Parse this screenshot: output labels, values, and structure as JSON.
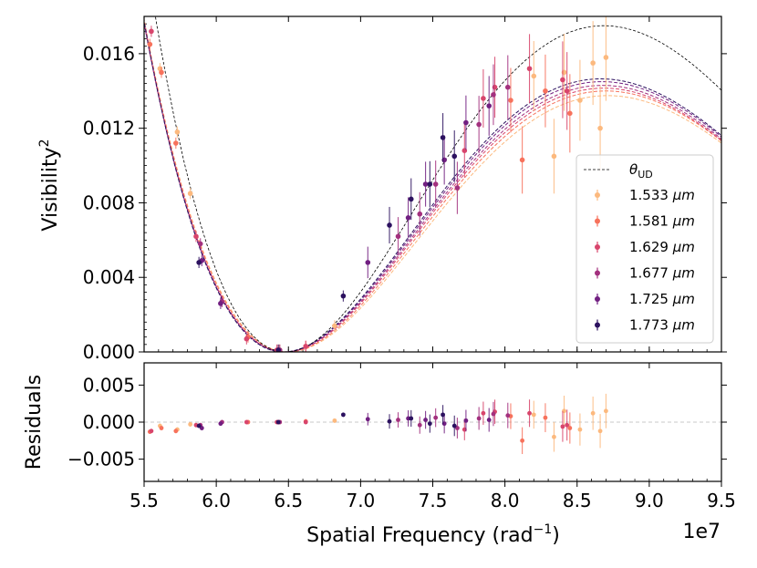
{
  "chart_data": {
    "type": "scatter",
    "x_multiplier_label": "1e7",
    "xlabel": "Spatial Frequency (rad",
    "xlabel_unit_power": "−1",
    "xlabel_suffix": ")",
    "xlim": [
      5.5,
      9.5
    ],
    "xticks": [
      "5.5",
      "6.0",
      "6.5",
      "7.0",
      "7.5",
      "8.0",
      "8.5",
      "9.0",
      "9.5"
    ],
    "top_panel": {
      "ylabel": "Visibility",
      "ylabel_power": "2",
      "ylim": [
        0.0,
        0.018
      ],
      "yticks": [
        "0.000",
        "0.004",
        "0.008",
        "0.012",
        "0.016"
      ],
      "ud_model": {
        "label_symbol": "θ",
        "label_sub": "UD",
        "peak": 0.0175,
        "null_x": 6.48,
        "peak_x": 8.67,
        "color": "#000000"
      }
    },
    "bottom_panel": {
      "ylabel": "Residuals",
      "ylim": [
        -0.008,
        0.008
      ],
      "yticks": [
        "0.005",
        "0.000",
        "−0.005"
      ]
    },
    "legend": {
      "location": "lower-right"
    },
    "series": [
      {
        "name": "1.533",
        "unit": "μm",
        "color": "#fcb97e",
        "model_peak": 0.01375,
        "model_null": 6.5,
        "points": [
          [
            5.61,
            0.0152
          ],
          [
            5.73,
            0.0118
          ],
          [
            5.82,
            0.0085
          ],
          [
            6.44,
            0.0001
          ],
          [
            6.82,
            0.0014
          ],
          [
            8.2,
            0.0148
          ],
          [
            8.34,
            0.0105
          ],
          [
            8.41,
            0.015
          ],
          [
            8.52,
            0.0135
          ],
          [
            8.61,
            0.0155
          ],
          [
            8.66,
            0.012
          ],
          [
            8.7,
            0.0158
          ]
        ],
        "residuals": [
          [
            5.61,
            -0.0005
          ],
          [
            5.73,
            -0.001
          ],
          [
            5.82,
            -0.0003
          ],
          [
            6.44,
            0.0
          ],
          [
            6.82,
            0.0002
          ],
          [
            8.2,
            0.001
          ],
          [
            8.34,
            -0.002
          ],
          [
            8.41,
            0.0015
          ],
          [
            8.52,
            -0.001
          ],
          [
            8.61,
            0.0012
          ],
          [
            8.66,
            -0.0012
          ],
          [
            8.7,
            0.0015
          ]
        ]
      },
      {
        "name": "1.581",
        "unit": "μm",
        "color": "#f7725c",
        "model_peak": 0.014,
        "model_null": 6.49,
        "points": [
          [
            5.54,
            0.0165
          ],
          [
            5.62,
            0.015
          ],
          [
            5.72,
            0.0112
          ],
          [
            6.22,
            0.0008
          ],
          [
            6.43,
            0.0001
          ],
          [
            6.62,
            0.0003
          ],
          [
            8.04,
            0.0135
          ],
          [
            8.12,
            0.0103
          ],
          [
            8.28,
            0.014
          ],
          [
            8.45,
            0.0128
          ]
        ],
        "residuals": [
          [
            5.54,
            -0.0013
          ],
          [
            5.62,
            -0.0008
          ],
          [
            5.72,
            -0.0012
          ],
          [
            6.22,
            0.0
          ],
          [
            6.43,
            0.0
          ],
          [
            6.62,
            0.0001
          ],
          [
            8.04,
            0.0008
          ],
          [
            8.12,
            -0.0025
          ],
          [
            8.28,
            0.0006
          ],
          [
            8.45,
            -0.0008
          ]
        ]
      },
      {
        "name": "1.629",
        "unit": "μm",
        "color": "#d8456c",
        "model_peak": 0.01415,
        "model_null": 6.48,
        "points": [
          [
            5.55,
            0.0172
          ],
          [
            5.86,
            0.0062
          ],
          [
            6.21,
            0.0007
          ],
          [
            6.42,
            0.0001
          ],
          [
            6.62,
            0.0003
          ],
          [
            7.72,
            0.0108
          ],
          [
            7.85,
            0.0136
          ],
          [
            7.93,
            0.0142
          ],
          [
            8.17,
            0.0152
          ],
          [
            8.4,
            0.0146
          ],
          [
            8.43,
            0.014
          ]
        ],
        "residuals": [
          [
            5.55,
            -0.0012
          ],
          [
            5.86,
            -0.0004
          ],
          [
            6.21,
            0.0
          ],
          [
            6.42,
            0.0
          ],
          [
            6.62,
            0.0
          ],
          [
            7.72,
            -0.001
          ],
          [
            7.85,
            0.0012
          ],
          [
            7.93,
            0.0014
          ],
          [
            8.17,
            0.0012
          ],
          [
            8.4,
            -0.0006
          ],
          [
            8.43,
            -0.0004
          ]
        ]
      },
      {
        "name": "1.677",
        "unit": "μm",
        "color": "#a3307e",
        "model_peak": 0.0143,
        "model_null": 6.475,
        "points": [
          [
            5.89,
            0.0058
          ],
          [
            6.04,
            0.0027
          ],
          [
            6.44,
            0.0001
          ],
          [
            7.26,
            0.0062
          ],
          [
            7.41,
            0.0074
          ],
          [
            7.52,
            0.009
          ],
          [
            7.67,
            0.0088
          ],
          [
            7.82,
            0.0122
          ],
          [
            7.92,
            0.0138
          ],
          [
            8.02,
            0.0142
          ]
        ],
        "residuals": [
          [
            5.89,
            -0.0004
          ],
          [
            6.04,
            0.0
          ],
          [
            6.44,
            0.0
          ],
          [
            7.26,
            0.0003
          ],
          [
            7.41,
            -0.0004
          ],
          [
            7.52,
            0.0006
          ],
          [
            7.67,
            -0.0008
          ],
          [
            7.82,
            0.0005
          ],
          [
            7.92,
            0.0011
          ],
          [
            8.02,
            0.0009
          ]
        ]
      },
      {
        "name": "1.725",
        "unit": "μm",
        "color": "#711f81",
        "model_peak": 0.0145,
        "model_null": 6.47,
        "points": [
          [
            5.9,
            0.0049
          ],
          [
            6.03,
            0.0026
          ],
          [
            7.05,
            0.0048
          ],
          [
            7.33,
            0.0072
          ],
          [
            7.45,
            0.009
          ],
          [
            7.58,
            0.0103
          ],
          [
            7.73,
            0.0123
          ],
          [
            7.89,
            0.0132
          ]
        ],
        "residuals": [
          [
            5.9,
            -0.0008
          ],
          [
            6.03,
            -0.0002
          ],
          [
            7.05,
            0.0004
          ],
          [
            7.33,
            0.0005
          ],
          [
            7.45,
            0.0003
          ],
          [
            7.58,
            -0.0002
          ],
          [
            7.73,
            0.0002
          ],
          [
            7.89,
            0.0003
          ]
        ]
      },
      {
        "name": "1.773",
        "unit": "μm",
        "color": "#2c115f",
        "model_peak": 0.01465,
        "model_null": 6.465,
        "points": [
          [
            5.88,
            0.0048
          ],
          [
            6.43,
            0.0001
          ],
          [
            6.88,
            0.003
          ],
          [
            7.2,
            0.0068
          ],
          [
            7.35,
            0.0082
          ],
          [
            7.48,
            0.009
          ],
          [
            7.57,
            0.0115
          ],
          [
            7.65,
            0.0105
          ]
        ],
        "residuals": [
          [
            5.88,
            -0.0005
          ],
          [
            6.43,
            0.0
          ],
          [
            6.88,
            0.001
          ],
          [
            7.2,
            0.0001
          ],
          [
            7.35,
            0.0005
          ],
          [
            7.48,
            -0.0002
          ],
          [
            7.57,
            0.001
          ],
          [
            7.65,
            -0.0005
          ]
        ]
      }
    ]
  }
}
